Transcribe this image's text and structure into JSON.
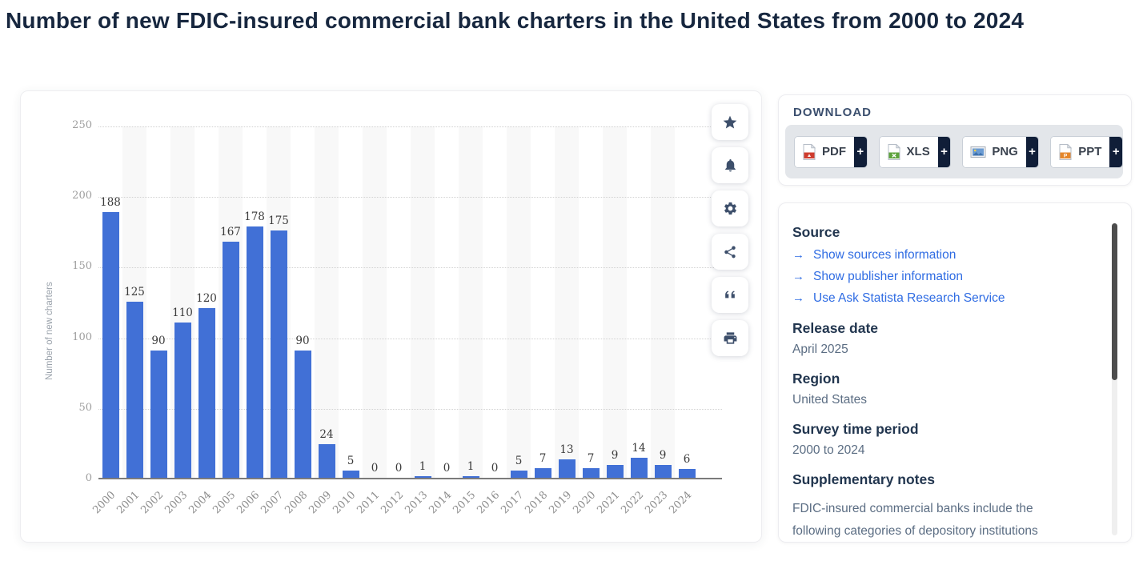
{
  "page": {
    "title": "Number of new FDIC-insured commercial bank charters in the United States from 2000 to 2024"
  },
  "chart_data": {
    "type": "bar",
    "title": "Number of new FDIC-insured commercial bank charters in the United States from 2000 to 2024",
    "xlabel": "",
    "ylabel": "Number of new charters",
    "ylim": [
      0,
      250
    ],
    "yticks": [
      0,
      50,
      100,
      150,
      200,
      250
    ],
    "grid": true,
    "legend": "none",
    "categories": [
      "2000",
      "2001",
      "2002",
      "2003",
      "2004",
      "2005",
      "2006",
      "2007",
      "2008",
      "2009",
      "2010",
      "2011",
      "2012",
      "2013",
      "2014",
      "2015",
      "2016",
      "2017",
      "2018",
      "2019",
      "2020",
      "2021",
      "2022",
      "2023",
      "2024"
    ],
    "values": [
      188,
      125,
      90,
      110,
      120,
      167,
      178,
      175,
      90,
      24,
      5,
      0,
      0,
      1,
      0,
      1,
      0,
      5,
      7,
      13,
      7,
      9,
      14,
      9,
      6
    ],
    "bar_color": "#4170d6",
    "band_color": "#f8f8f8"
  },
  "action_rail": {
    "items": [
      {
        "name": "favorite",
        "icon": "star-icon"
      },
      {
        "name": "alert",
        "icon": "bell-icon"
      },
      {
        "name": "settings",
        "icon": "gear-icon"
      },
      {
        "name": "share",
        "icon": "share-icon"
      },
      {
        "name": "cite",
        "icon": "quote-icon"
      },
      {
        "name": "print",
        "icon": "printer-icon"
      }
    ]
  },
  "download": {
    "label": "DOWNLOAD",
    "plus_label": "+",
    "buttons": [
      {
        "label": "PDF",
        "icon": "pdf-file-icon"
      },
      {
        "label": "XLS",
        "icon": "xls-file-icon"
      },
      {
        "label": "PNG",
        "icon": "png-file-icon"
      },
      {
        "label": "PPT",
        "icon": "ppt-file-icon"
      }
    ]
  },
  "details": {
    "source_heading": "Source",
    "link_arrow": "→",
    "links": [
      "Show sources information",
      "Show publisher information",
      "Use Ask Statista Research Service"
    ],
    "release_date_heading": "Release date",
    "release_date": "April 2025",
    "region_heading": "Region",
    "region": "United States",
    "survey_heading": "Survey time period",
    "survey_period": "2000 to 2024",
    "notes_heading": "Supplementary notes",
    "notes": "FDIC-insured commercial banks include the following categories of depository institutions"
  },
  "colors": {
    "bar": "#4170d6",
    "link": "#2f6ce3",
    "title": "#17273f",
    "heading": "#22364f",
    "body_text": "#5b6d83",
    "icon": "#3d4f6b",
    "plus_bg": "#101e38"
  }
}
